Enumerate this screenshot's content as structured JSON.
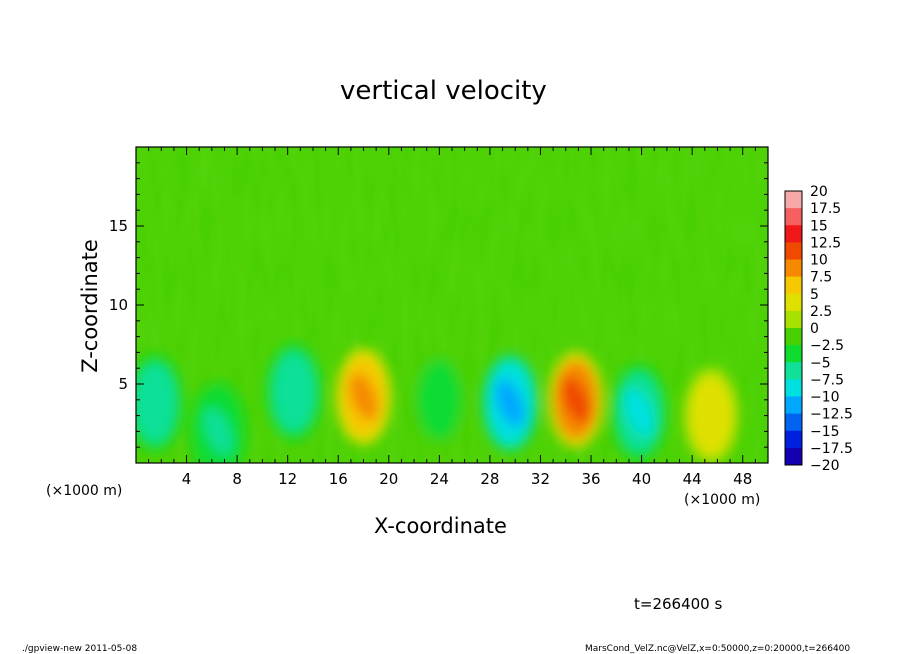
{
  "chart_data": {
    "type": "heatmap",
    "title": "vertical velocity",
    "xlabel": "X-coordinate",
    "ylabel": "Z-coordinate",
    "x_unit_left": "(×1000 m)",
    "x_unit_right": "(×1000 m)",
    "xlim": [
      0,
      50
    ],
    "ylim": [
      0,
      20
    ],
    "x_ticks": [
      4,
      8,
      12,
      16,
      20,
      24,
      28,
      32,
      36,
      40,
      44,
      48
    ],
    "x_tick_labels": [
      "4",
      "8",
      "12",
      "16",
      "20",
      "24",
      "28",
      "32",
      "36",
      "40",
      "44",
      "48"
    ],
    "y_ticks": [
      5,
      10,
      15
    ],
    "y_tick_labels": [
      "5",
      "10",
      "15"
    ],
    "background_value": 0,
    "features": [
      {
        "x": 1.5,
        "z": 3.8,
        "value": -6
      },
      {
        "x": 6.5,
        "z": 2.0,
        "value": -4
      },
      {
        "x": 12.5,
        "z": 4.5,
        "value": -5
      },
      {
        "x": 18.0,
        "z": 4.2,
        "value": 11
      },
      {
        "x": 24.0,
        "z": 4.0,
        "value": -2.5
      },
      {
        "x": 29.6,
        "z": 3.8,
        "value": -11
      },
      {
        "x": 34.8,
        "z": 4.0,
        "value": 12.5
      },
      {
        "x": 39.8,
        "z": 3.2,
        "value": -8
      },
      {
        "x": 45.5,
        "z": 3.0,
        "value": 6
      }
    ],
    "colorbar": {
      "labels": [
        "20",
        "17.5",
        "15",
        "12.5",
        "10",
        "7.5",
        "5",
        "2.5",
        "0",
        "−2.5",
        "−5",
        "−7.5",
        "−10",
        "−12.5",
        "−15",
        "−17.5",
        "−20"
      ],
      "colors": [
        "#f8a8a8",
        "#f66060",
        "#f01818",
        "#f04a00",
        "#f58a00",
        "#f5c800",
        "#e0e000",
        "#a8e000",
        "#48d000",
        "#10dc30",
        "#10e098",
        "#00e0e0",
        "#00a8ff",
        "#0064f0",
        "#0020e0",
        "#1400b0",
        "#6400b0"
      ]
    }
  },
  "annotations": {
    "time_label": "t=266400 s",
    "footer_left": "./gpview-new  2011-05-08",
    "footer_right": "MarsCond_VelZ.nc@VelZ,x=0:50000,z=0:20000,t=266400"
  }
}
